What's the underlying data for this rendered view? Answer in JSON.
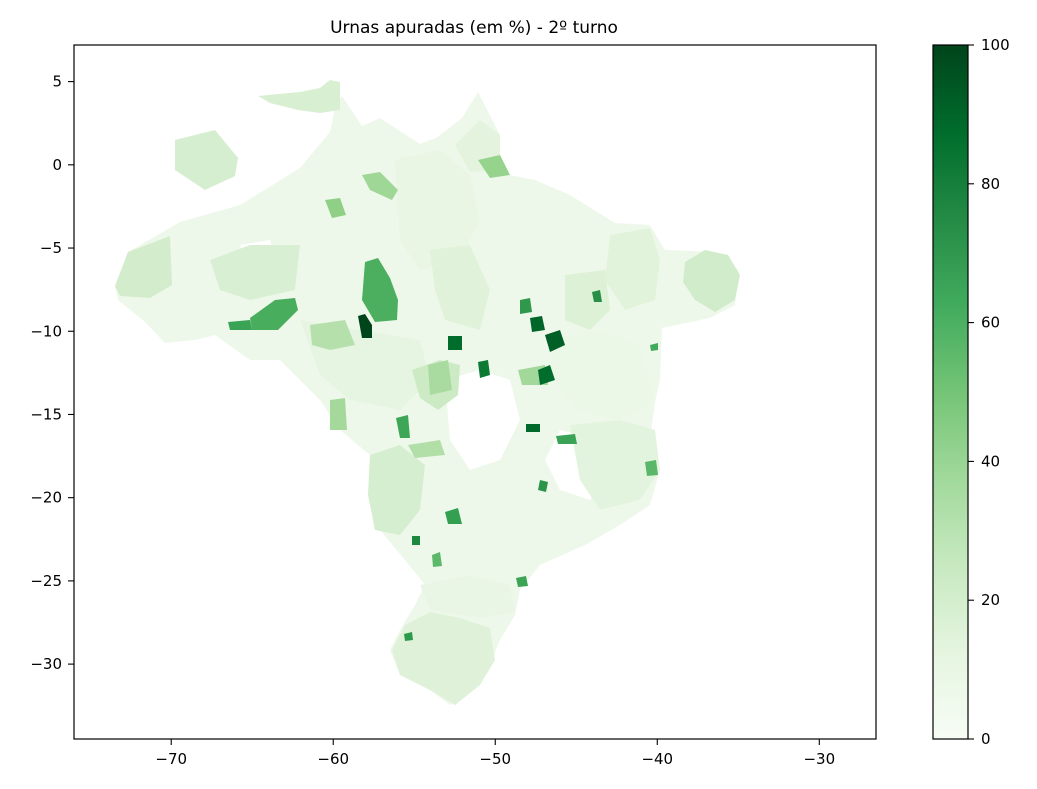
{
  "figure": {
    "title": "Urnas apuradas (em %) - 2º turno"
  },
  "map_axes": {
    "x_ticks": [
      "−70",
      "−60",
      "−50",
      "−40",
      "−30"
    ],
    "y_ticks": [
      "5",
      "0",
      "−5",
      "−10",
      "−15",
      "−20",
      "−25",
      "−30"
    ]
  },
  "colorbar": {
    "ticks": [
      "0",
      "20",
      "40",
      "60",
      "80",
      "100"
    ],
    "colormap": "Greens",
    "range": [
      0,
      100
    ],
    "colors": [
      "#f7fcf5",
      "#e5f5e0",
      "#c7e9c0",
      "#a1d99b",
      "#74c476",
      "#41ab5d",
      "#238b45",
      "#006d2c",
      "#00441b"
    ]
  },
  "chart_data": {
    "type": "choropleth",
    "title": "Urnas apuradas (em %) - 2º turno",
    "xlim": [
      -76,
      -26.5
    ],
    "ylim": [
      -34.5,
      7.2
    ],
    "x_ticks": [
      -70,
      -60,
      -50,
      -40,
      -30
    ],
    "y_ticks": [
      5,
      0,
      -5,
      -10,
      -15,
      -20,
      -25,
      -30
    ],
    "value_range": [
      0,
      100
    ],
    "grid": false,
    "regions": [
      {
        "lon": -61.5,
        "lat": 2.2,
        "value": 22
      },
      {
        "lon": -58.0,
        "lat": -7.0,
        "value": 55
      },
      {
        "lon": -58.3,
        "lat": -9.8,
        "value": 98
      },
      {
        "lon": -64.0,
        "lat": -9.5,
        "value": 62
      },
      {
        "lon": -62.0,
        "lat": -9.8,
        "value": 72
      },
      {
        "lon": -52.5,
        "lat": -10.5,
        "value": 90
      },
      {
        "lon": -47.5,
        "lat": -9.5,
        "value": 92
      },
      {
        "lon": -46.5,
        "lat": -10.6,
        "value": 85
      },
      {
        "lon": -47.0,
        "lat": -12.7,
        "value": 88
      },
      {
        "lon": -48.5,
        "lat": -12.2,
        "value": 82
      },
      {
        "lon": -48.0,
        "lat": -6.8,
        "value": 84
      },
      {
        "lon": -49.0,
        "lat": -8.3,
        "value": 78
      },
      {
        "lon": -47.8,
        "lat": -15.7,
        "value": 90
      },
      {
        "lon": -47.5,
        "lat": -19.3,
        "value": 80
      },
      {
        "lon": -53.0,
        "lat": -21.3,
        "value": 65
      },
      {
        "lon": -59.5,
        "lat": -3.0,
        "value": 55
      },
      {
        "lon": -60.0,
        "lat": -14.8,
        "value": 48
      },
      {
        "lon": -55.5,
        "lat": -17.5,
        "value": 45
      },
      {
        "lon": -54.0,
        "lat": -12.5,
        "value": 30
      },
      {
        "lon": -66.5,
        "lat": -0.5,
        "value": 15
      },
      {
        "lon": -71.5,
        "lat": -6.5,
        "value": 14
      },
      {
        "lon": -44.0,
        "lat": -8.5,
        "value": 60
      },
      {
        "lon": -42.0,
        "lat": -14.5,
        "value": 18
      },
      {
        "lon": -37.0,
        "lat": -6.5,
        "value": 30
      },
      {
        "lon": -52.0,
        "lat": -29.5,
        "value": 20
      }
    ]
  }
}
